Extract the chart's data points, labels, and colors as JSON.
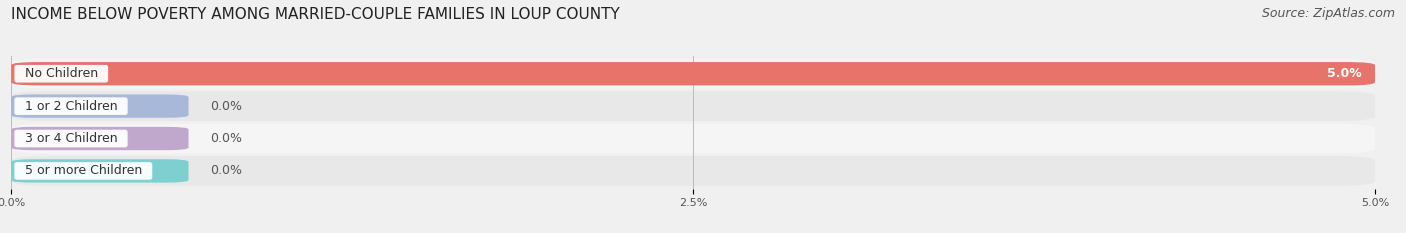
{
  "title": "INCOME BELOW POVERTY AMONG MARRIED-COUPLE FAMILIES IN LOUP COUNTY",
  "source": "Source: ZipAtlas.com",
  "categories": [
    "No Children",
    "1 or 2 Children",
    "3 or 4 Children",
    "5 or more Children"
  ],
  "values": [
    5.0,
    0.0,
    0.0,
    0.0
  ],
  "bar_colors": [
    "#e8736a",
    "#a8b8d8",
    "#c0a8cc",
    "#7ecfd0"
  ],
  "label_border_colors": [
    "#e8736a",
    "#a8b8d8",
    "#c0a8cc",
    "#7ecfd0"
  ],
  "xlim": [
    0,
    5.0
  ],
  "xticks": [
    0.0,
    2.5,
    5.0
  ],
  "xticklabels": [
    "0.0%",
    "2.5%",
    "5.0%"
  ],
  "background_color": "#f0f0f0",
  "row_bg_even": "#e8e8e8",
  "row_bg_odd": "#f5f5f5",
  "title_fontsize": 11,
  "source_fontsize": 9,
  "bar_label_fontsize": 9,
  "category_fontsize": 9,
  "value_label_color": "#555555",
  "zero_bar_width": 0.65
}
